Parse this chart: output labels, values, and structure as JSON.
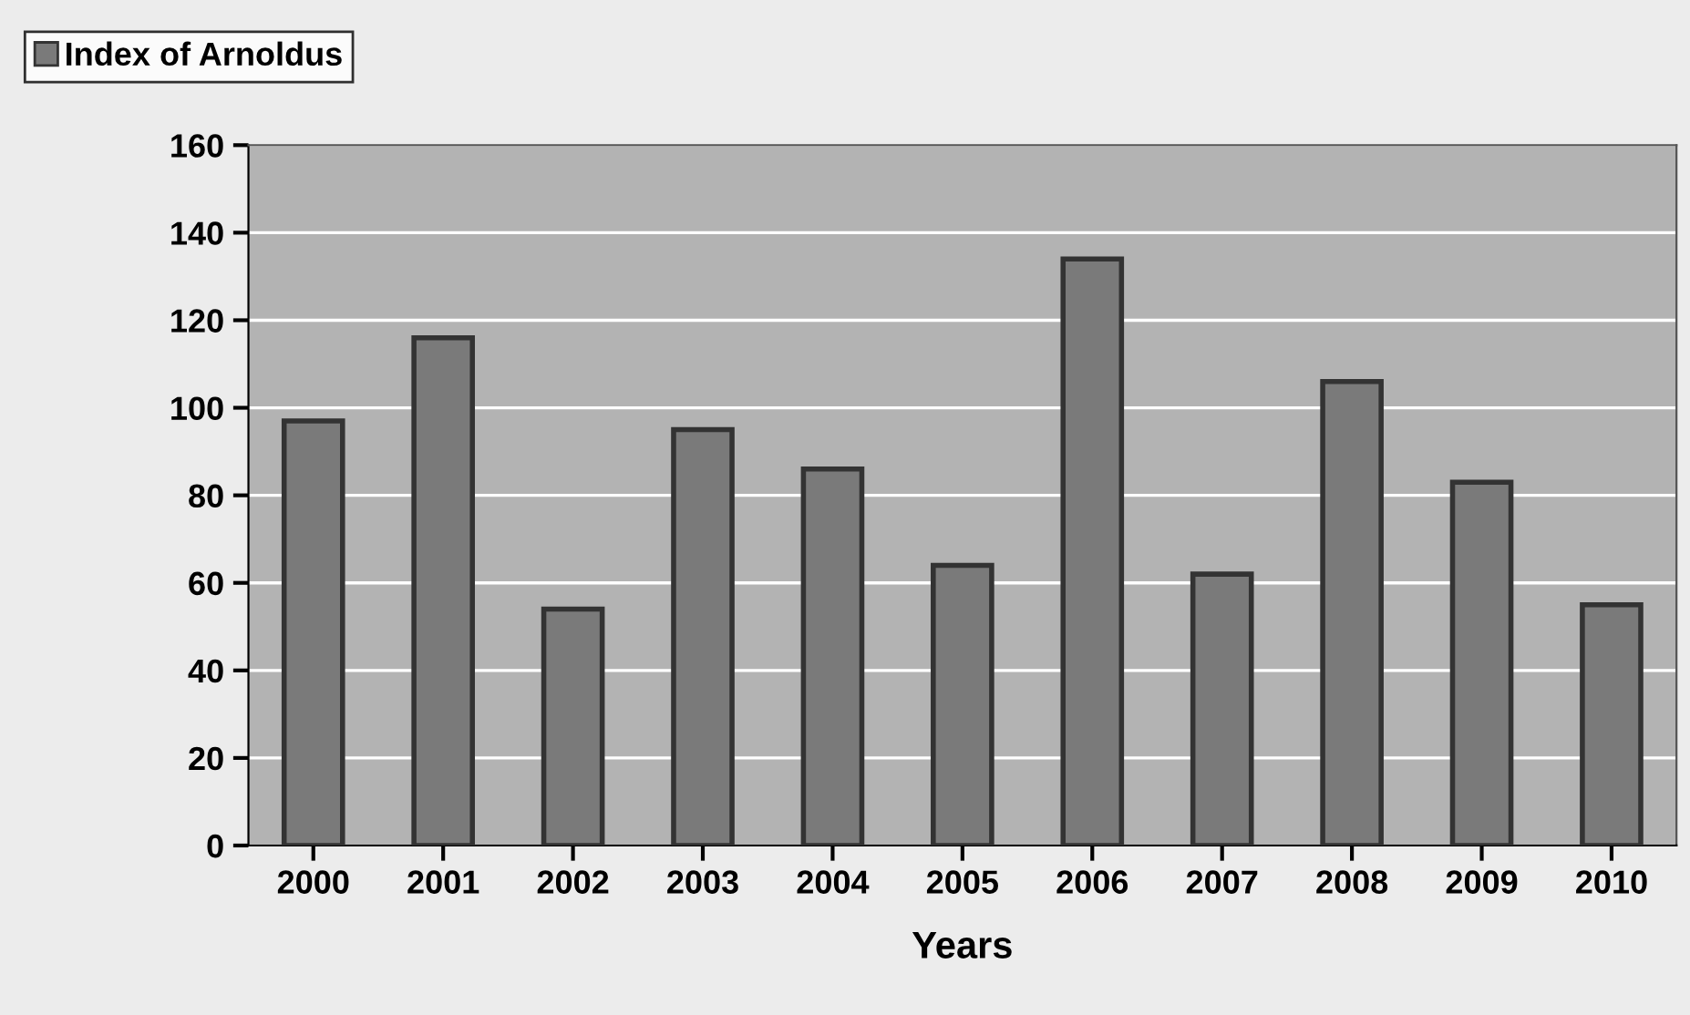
{
  "chart_data": {
    "type": "bar",
    "xlabel": "Years",
    "categories": [
      "2000",
      "2001",
      "2002",
      "2003",
      "2004",
      "2005",
      "2006",
      "2007",
      "2008",
      "2009",
      "2010"
    ],
    "series": [
      {
        "name": "Index of Arnoldus",
        "color": "#7a7a7a",
        "values": [
          97,
          116,
          54,
          95,
          86,
          64,
          134,
          62,
          106,
          83,
          55
        ]
      }
    ],
    "ylim": [
      0,
      160
    ],
    "yticks": [
      0,
      20,
      40,
      60,
      80,
      100,
      120,
      140,
      160
    ],
    "grid": "y",
    "legend": "top left"
  }
}
